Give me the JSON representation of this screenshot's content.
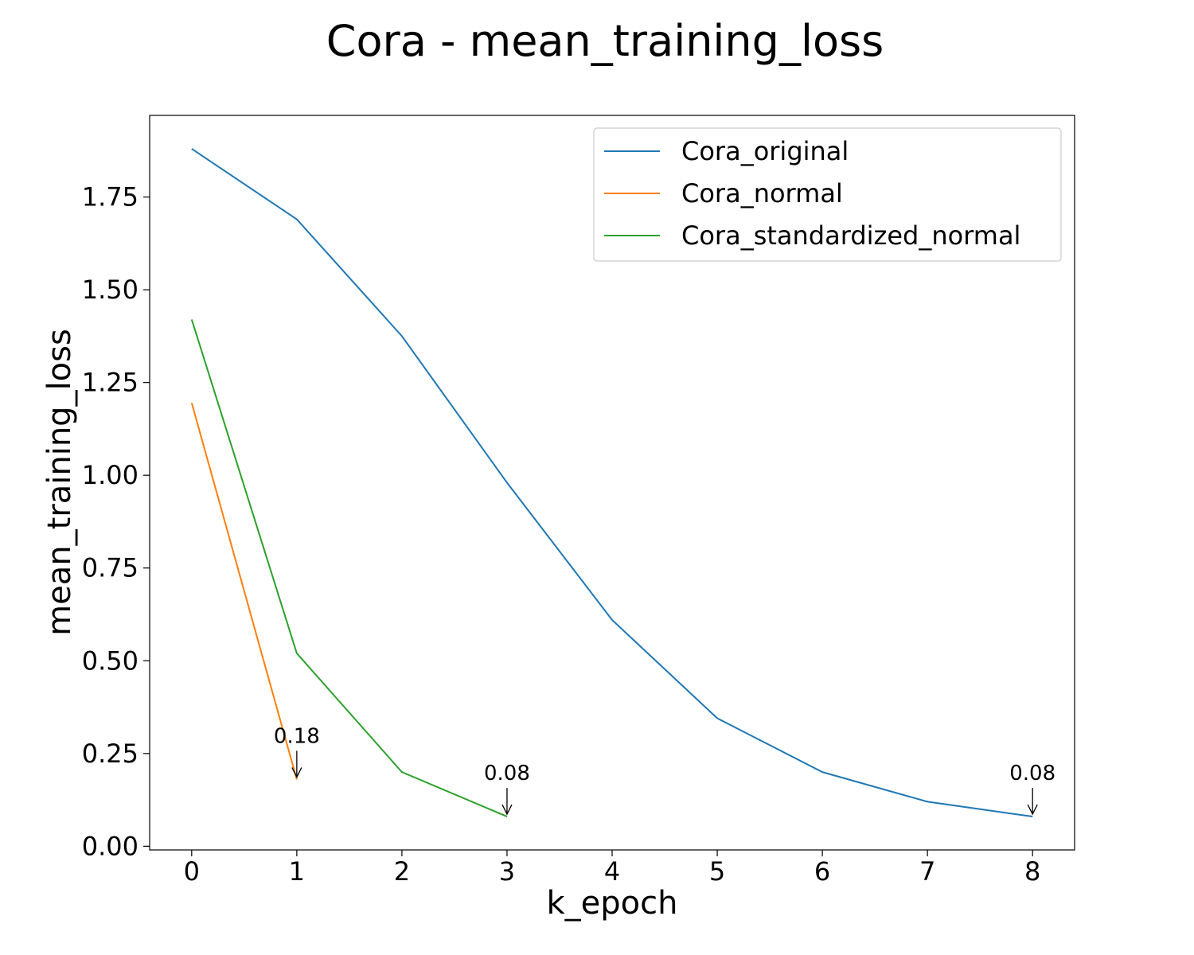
{
  "chart_data": {
    "type": "line",
    "title": "Cora - mean_training_loss",
    "xlabel": "k_epoch",
    "ylabel": "mean_training_loss",
    "xlim": [
      -0.4,
      8.4
    ],
    "ylim": [
      -0.01,
      1.97
    ],
    "x_ticks": [
      0,
      1,
      2,
      3,
      4,
      5,
      6,
      7,
      8
    ],
    "x_tick_labels": [
      "0",
      "1",
      "2",
      "3",
      "4",
      "5",
      "6",
      "7",
      "8"
    ],
    "y_ticks": [
      0.0,
      0.25,
      0.5,
      0.75,
      1.0,
      1.25,
      1.5,
      1.75
    ],
    "y_tick_labels": [
      "0.00",
      "0.25",
      "0.50",
      "0.75",
      "1.00",
      "1.25",
      "1.50",
      "1.75"
    ],
    "grid": false,
    "legend_position": "top-right",
    "series": [
      {
        "name": "Cora_original",
        "color": "#1f77b4",
        "x": [
          0,
          1,
          2,
          3,
          4,
          5,
          6,
          7,
          8
        ],
        "y": [
          1.88,
          1.69,
          1.375,
          0.98,
          0.61,
          0.345,
          0.2,
          0.12,
          0.08
        ]
      },
      {
        "name": "Cora_normal",
        "color": "#ff7f0e",
        "x": [
          0,
          1
        ],
        "y": [
          1.195,
          0.18
        ]
      },
      {
        "name": "Cora_standardized_normal",
        "color": "#2ca02c",
        "x": [
          0,
          1,
          2,
          3
        ],
        "y": [
          1.42,
          0.52,
          0.2,
          0.08
        ]
      }
    ],
    "annotations": [
      {
        "text": "0.18",
        "x": 1,
        "y": 0.18
      },
      {
        "text": "0.08",
        "x": 3,
        "y": 0.08
      },
      {
        "text": "0.08",
        "x": 8,
        "y": 0.08
      }
    ]
  }
}
